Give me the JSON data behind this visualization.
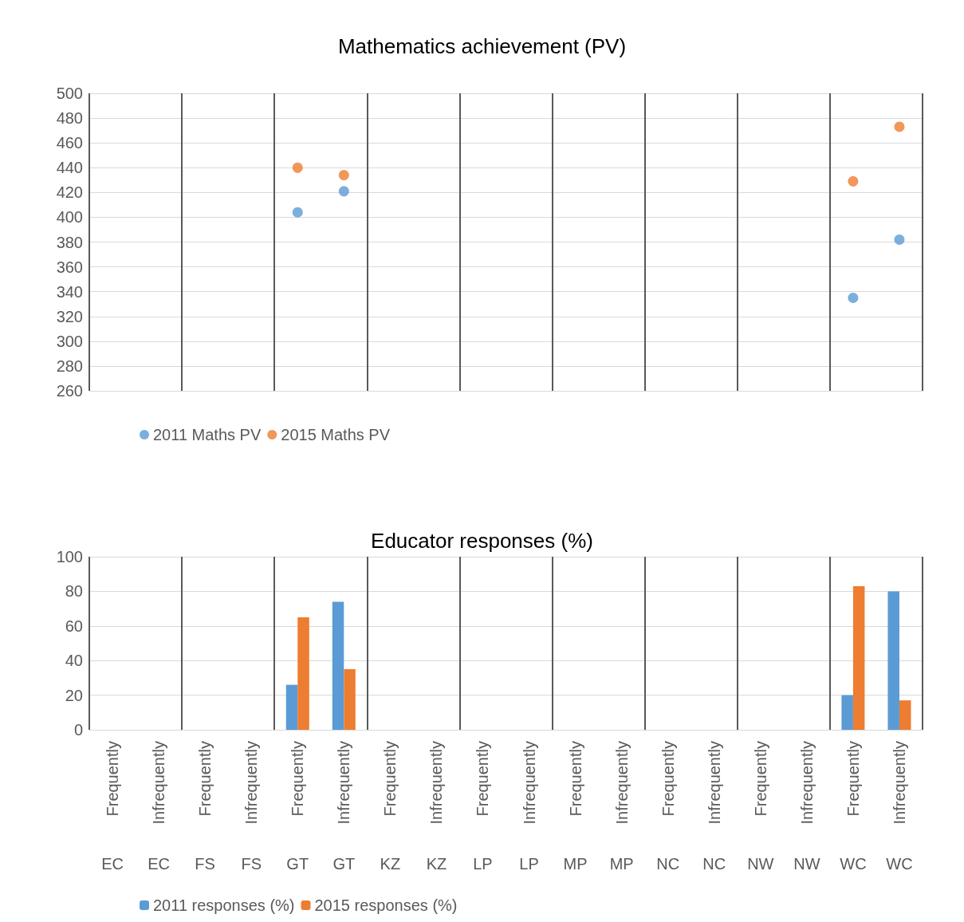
{
  "chart_data": [
    {
      "type": "scatter",
      "title": "Mathematics achievement (PV)",
      "categories": [
        null,
        null,
        null,
        null,
        null,
        null,
        null,
        null,
        null,
        null,
        null,
        null,
        null,
        null,
        null,
        null,
        null,
        null
      ],
      "series": [
        {
          "name": "2011 Maths PV",
          "color": "#5b9bd5",
          "values": [
            null,
            null,
            null,
            null,
            404,
            421,
            null,
            null,
            null,
            null,
            null,
            null,
            null,
            null,
            null,
            null,
            335,
            382
          ]
        },
        {
          "name": "2015 Maths PV",
          "color": "#ed7d31",
          "values": [
            null,
            null,
            null,
            null,
            440,
            434,
            null,
            null,
            null,
            null,
            null,
            null,
            null,
            null,
            null,
            null,
            429,
            473
          ]
        }
      ],
      "ylim": [
        260,
        500
      ],
      "yticks": [
        260,
        280,
        300,
        320,
        340,
        360,
        380,
        400,
        420,
        440,
        460,
        480,
        500
      ],
      "grid": "y",
      "legend": "bottom",
      "marker": "circle",
      "tick_labels": "y"
    },
    {
      "type": "bar",
      "title": "Educator responses (%)",
      "categories": [
        "Frequently\nEC",
        "Infrequently\nEC",
        "Frequently\nFS",
        "Infrequently\nFS",
        "Frequently\nGT",
        "Infrequently\nGT",
        "Frequently\nKZ",
        "Infrequently\nKZ",
        "Frequently\nLP",
        "Infrequently\nLP",
        "Frequently\nMP",
        "Infrequently\nMP",
        "Frequently\nNC",
        "Infrequently\nNC",
        "Frequently\nNW",
        "Infrequently\nNW",
        "Frequently\nWC",
        "Infrequently\nWC"
      ],
      "series": [
        {
          "name": "2011 responses (%)",
          "color": "#5b9bd5",
          "values": [
            null,
            null,
            null,
            null,
            26,
            74,
            null,
            null,
            null,
            null,
            null,
            null,
            null,
            null,
            null,
            null,
            20,
            80
          ]
        },
        {
          "name": "2015 responses (%)",
          "color": "#ed7d31",
          "values": [
            null,
            null,
            null,
            null,
            65,
            35,
            null,
            null,
            null,
            null,
            null,
            null,
            null,
            null,
            null,
            null,
            83,
            17
          ]
        }
      ],
      "ylim": [
        0,
        100
      ],
      "yticks": [
        0,
        20,
        40,
        60,
        80,
        100
      ],
      "grid": "y",
      "legend": "bottom"
    }
  ]
}
